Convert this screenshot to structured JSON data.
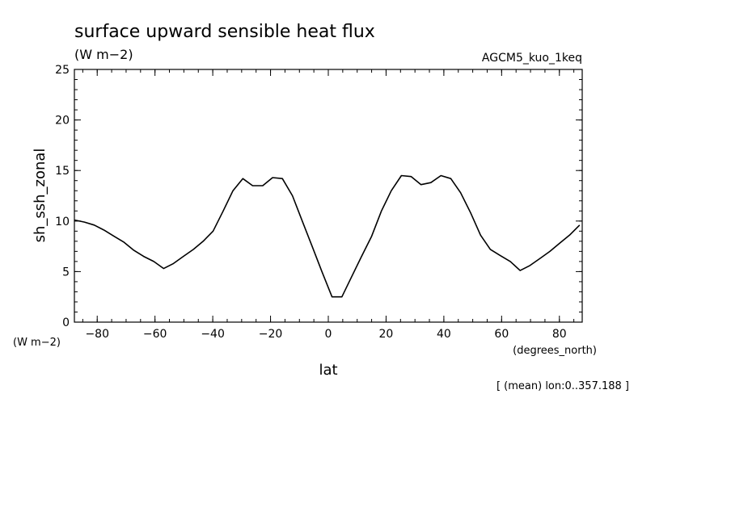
{
  "chart_data": {
    "type": "line",
    "title": "surface upward sensible heat flux",
    "units": "(W m−2)",
    "experiment": "AGCM5_kuo_1keq",
    "xlabel": "lat",
    "xunits": "(degrees_north)",
    "ylabel": "sh_ssh_zonal",
    "yunits": "(W m−2)",
    "footnote": "[ (mean) lon:0..357.188 ]",
    "xlim": [
      -87.9,
      87.9
    ],
    "ylim": [
      0,
      25
    ],
    "xticks": [
      -80,
      -60,
      -40,
      -20,
      0,
      20,
      40,
      60,
      80
    ],
    "xticklabels": [
      "−80",
      "−60",
      "−40",
      "−20",
      "0",
      "20",
      "40",
      "60",
      "80"
    ],
    "yticks": [
      0,
      5,
      10,
      15,
      20,
      25
    ],
    "yticklabels": [
      "0",
      "5",
      "10",
      "15",
      "20",
      "25"
    ],
    "grid": false,
    "series": [
      {
        "x": [
          -87.9,
          -84.4,
          -81.0,
          -77.6,
          -74.2,
          -70.7,
          -67.3,
          -63.9,
          -60.4,
          -57.0,
          -53.6,
          -50.2,
          -46.7,
          -43.3,
          -39.9,
          -36.4,
          -33.0,
          -29.6,
          -26.2,
          -22.7,
          -19.3,
          -15.9,
          -12.4,
          -9.0,
          -5.6,
          -2.2,
          1.3,
          4.7,
          8.1,
          11.5,
          15.0,
          18.4,
          21.8,
          25.3,
          28.7,
          32.1,
          35.5,
          39.0,
          42.4,
          45.8,
          49.3,
          52.7,
          56.1,
          59.5,
          63.0,
          66.4,
          69.8,
          73.3,
          76.7,
          80.1,
          83.5,
          87.0
        ],
        "values": [
          10.1,
          9.9,
          9.6,
          9.1,
          8.5,
          7.9,
          7.1,
          6.5,
          6.0,
          5.3,
          5.8,
          6.5,
          7.2,
          8.0,
          9.0,
          11.0,
          13.0,
          14.2,
          13.5,
          13.5,
          14.3,
          14.2,
          12.5,
          10.0,
          7.5,
          5.0,
          2.5,
          2.5,
          4.5,
          6.5,
          8.5,
          11.0,
          13.0,
          14.5,
          14.4,
          13.6,
          13.8,
          14.5,
          14.2,
          12.8,
          10.8,
          8.6,
          7.2,
          6.6,
          6.0,
          5.1,
          5.6,
          6.3,
          7.0,
          7.8,
          8.6,
          9.6
        ]
      }
    ]
  }
}
